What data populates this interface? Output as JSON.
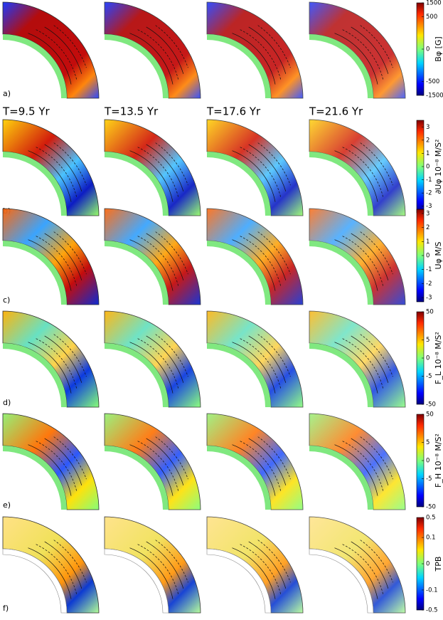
{
  "chart_data": [
    {
      "type": "heatmap",
      "row_label": "a)",
      "colorbar_label": "Bφ [G]",
      "scale": "symlog",
      "ylim": [
        -1500,
        1500
      ],
      "yticks": [
        -1500,
        -500,
        0,
        500,
        1500
      ]
    },
    {
      "type": "heatmap",
      "row_label": "b)",
      "panel_titles": [
        "T=9.5 Yr",
        "T=13.5 Yr",
        "T=17.6 Yr",
        "T=21.6 Yr"
      ],
      "colorbar_label": "∂Uφ  10⁻⁸ M/S²",
      "scale": "linear",
      "ylim": [
        -3.5,
        3.5
      ],
      "yticks": [
        -3,
        -2,
        -1,
        0,
        1,
        2,
        3
      ]
    },
    {
      "type": "heatmap",
      "row_label": "c)",
      "colorbar_label": "Uφ  M/S",
      "scale": "linear",
      "ylim": [
        -3.3,
        3.3
      ],
      "yticks": [
        -3,
        -2,
        -1,
        0,
        1,
        2,
        3
      ]
    },
    {
      "type": "heatmap",
      "row_label": "d)",
      "colorbar_label": "F_L  10⁻⁸ M/S²",
      "scale": "symlog",
      "ylim": [
        -50,
        50
      ],
      "yticks": [
        -50,
        -5,
        0,
        5,
        50
      ]
    },
    {
      "type": "heatmap",
      "row_label": "e)",
      "colorbar_label": "F_H  10⁻⁸ M/S²",
      "scale": "symlog",
      "ylim": [
        -50,
        50
      ],
      "yticks": [
        -50,
        -5,
        0,
        5,
        50
      ]
    },
    {
      "type": "heatmap",
      "row_label": "f)",
      "colorbar_label": "TPB",
      "scale": "symlog",
      "ylim": [
        -0.5,
        0.5
      ],
      "yticks": [
        -0.5,
        -0.1,
        0,
        0.1,
        0.5
      ]
    }
  ]
}
